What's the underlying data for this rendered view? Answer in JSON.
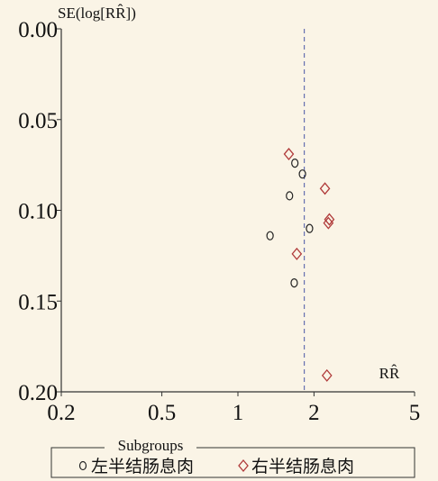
{
  "chart_data": {
    "type": "scatter",
    "y_label": "SE(log[RR̂])",
    "x_label": "RR̂",
    "x_log": true,
    "y_inverted": true,
    "xlim": [
      0.2,
      5
    ],
    "ylim": [
      0,
      0.2
    ],
    "xticks": [
      0.2,
      0.5,
      1,
      2,
      5
    ],
    "yticks": [
      {
        "value": 0,
        "label": "0.00"
      },
      {
        "value": 0.05,
        "label": "0.05"
      },
      {
        "value": 0.1,
        "label": "0.10"
      },
      {
        "value": 0.15,
        "label": "0.15"
      },
      {
        "value": 0.2,
        "label": "0.20"
      }
    ],
    "reference_line": 1.83,
    "legend_title": "Subgroups",
    "series": [
      {
        "name": "左半结肠息肉",
        "color": "#222222",
        "marker": "circle",
        "x": [
          1.68,
          1.8,
          1.6,
          1.92,
          1.34,
          1.67
        ],
        "values": [
          0.074,
          0.08,
          0.092,
          0.11,
          0.114,
          0.14
        ]
      },
      {
        "name": "右半结肠息肉",
        "color": "#b03a3a",
        "marker": "diamond",
        "x": [
          1.59,
          2.21,
          2.3,
          2.28,
          1.71,
          2.25
        ],
        "values": [
          0.069,
          0.088,
          0.105,
          0.107,
          0.124,
          0.191
        ]
      }
    ]
  }
}
